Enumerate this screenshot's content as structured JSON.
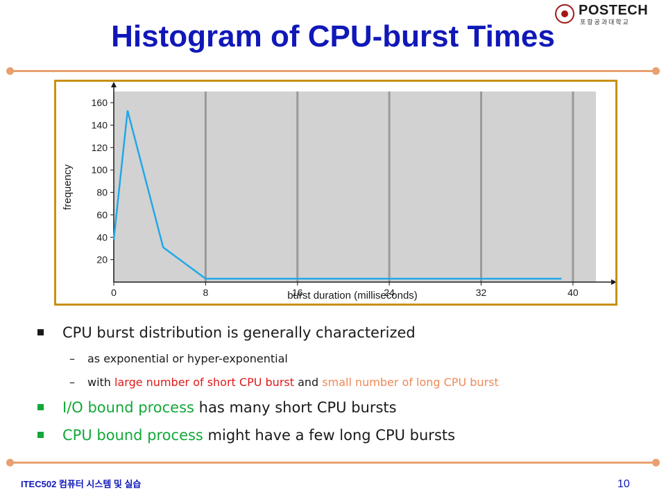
{
  "slide": {
    "title": "Histogram of CPU-burst Times",
    "logo_text": "POSTECH",
    "logo_subtext": "포항공과대학교",
    "footer": "ITEC502 컴퓨터 시스템 및 실습",
    "page_number": "10",
    "accent_color": "#e8a070",
    "title_color": "#1018b8"
  },
  "bullets": [
    {
      "text": "CPU burst distribution is generally characterized"
    },
    {
      "text": "as exponential or hyper-exponential"
    },
    {
      "pre": "with ",
      "red": "large number of short CPU burst",
      "mid": " and ",
      "orange": "small number of long CPU burst"
    },
    {
      "green": "I/O bound process",
      "rest": " has many short CPU bursts"
    },
    {
      "green": "CPU bound process",
      "rest": " might have a few long CPU bursts"
    }
  ],
  "chart_data": {
    "type": "line",
    "xlabel": "burst duration (milliseconds)",
    "ylabel": "frequency",
    "xlim": [
      0,
      42
    ],
    "ylim": [
      0,
      170
    ],
    "x_ticks": [
      0,
      8,
      16,
      24,
      32,
      40
    ],
    "y_ticks": [
      20,
      40,
      60,
      80,
      100,
      120,
      140,
      160
    ],
    "x": [
      0,
      1.2,
      4.3,
      8,
      16,
      24,
      32,
      39
    ],
    "y": [
      38,
      153,
      31,
      3,
      3,
      3,
      3,
      3
    ],
    "line_color": "#20a8e8",
    "plot_background": "#d2d2d2",
    "grid": true
  }
}
